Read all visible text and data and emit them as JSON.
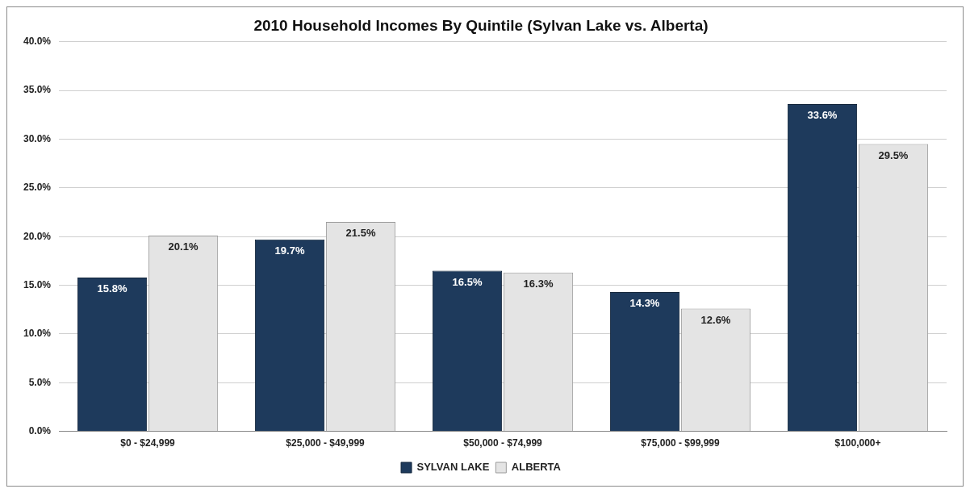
{
  "chart_data": {
    "type": "bar",
    "title": "2010 Household Incomes By Quintile (Sylvan Lake vs. Alberta)",
    "categories": [
      "$0 - $24,999",
      "$25,000 - $49,999",
      "$50,000 - $74,999",
      "$75,000 - $99,999",
      "$100,000+"
    ],
    "series": [
      {
        "name": "SYLVAN LAKE",
        "color": "#1e3a5c",
        "values": [
          15.8,
          19.7,
          16.5,
          14.3,
          33.6
        ],
        "value_labels": [
          "15.8%",
          "19.7%",
          "16.5%",
          "14.3%",
          "33.6%"
        ]
      },
      {
        "name": "ALBERTA",
        "color": "#e4e4e4",
        "values": [
          20.1,
          21.5,
          16.3,
          12.6,
          29.5
        ],
        "value_labels": [
          "20.1%",
          "21.5%",
          "16.3%",
          "12.6%",
          "29.5%"
        ]
      }
    ],
    "ylim": [
      0,
      40
    ],
    "yticks": [
      {
        "value": 0,
        "label": "0.0%"
      },
      {
        "value": 5,
        "label": "5.0%"
      },
      {
        "value": 10,
        "label": "10.0%"
      },
      {
        "value": 15,
        "label": "15.0%"
      },
      {
        "value": 20,
        "label": "20.0%"
      },
      {
        "value": 25,
        "label": "25.0%"
      },
      {
        "value": 30,
        "label": "30.0%"
      },
      {
        "value": 35,
        "label": "35.0%"
      },
      {
        "value": 40,
        "label": "40.0%"
      }
    ],
    "grid": "y",
    "legend": "bottom"
  }
}
